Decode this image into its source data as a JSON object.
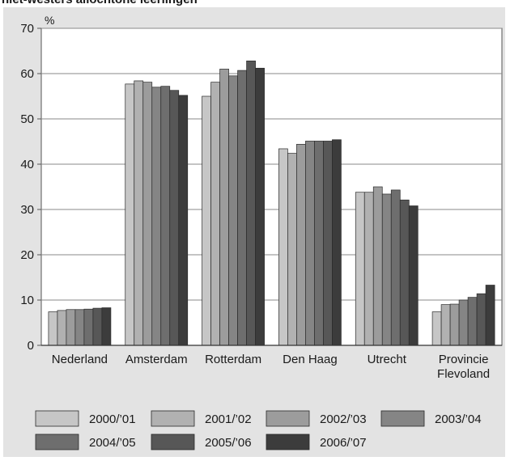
{
  "page": {
    "title": "niet-westers allochtone leerlingen"
  },
  "chart_data": {
    "type": "bar",
    "ylabel": "%",
    "ylim": [
      0,
      70
    ],
    "yticks": [
      0,
      10,
      20,
      30,
      40,
      50,
      60,
      70
    ],
    "grid": true,
    "legend_position": "bottom",
    "categories": [
      [
        "Nederland"
      ],
      [
        "Amsterdam"
      ],
      [
        "Rotterdam"
      ],
      [
        "Den Haag"
      ],
      [
        "Utrecht"
      ],
      [
        "Provincie",
        "Flevoland"
      ]
    ],
    "series": [
      {
        "name": "2000/’01",
        "color": "#c6c6c6",
        "values": [
          7.4,
          57.7,
          55.0,
          43.4,
          33.8,
          7.4
        ]
      },
      {
        "name": "2001/’02",
        "color": "#b1b1b1",
        "values": [
          7.7,
          58.4,
          58.1,
          42.4,
          33.8,
          9.0
        ]
      },
      {
        "name": "2002/’03",
        "color": "#9c9c9c",
        "values": [
          7.9,
          58.1,
          61.0,
          44.4,
          35.0,
          9.1
        ]
      },
      {
        "name": "2003/’04",
        "color": "#858585",
        "values": [
          7.9,
          57.0,
          59.5,
          45.1,
          33.4,
          10.0
        ]
      },
      {
        "name": "2004/’05",
        "color": "#6e6e6e",
        "values": [
          8.0,
          57.2,
          60.7,
          45.1,
          34.3,
          10.6
        ]
      },
      {
        "name": "2005/’06",
        "color": "#575757",
        "values": [
          8.2,
          56.3,
          62.8,
          45.1,
          32.1,
          11.4
        ]
      },
      {
        "name": "2006/’07",
        "color": "#3c3c3c",
        "values": [
          8.3,
          55.2,
          61.2,
          45.4,
          30.8,
          13.3
        ]
      }
    ]
  }
}
